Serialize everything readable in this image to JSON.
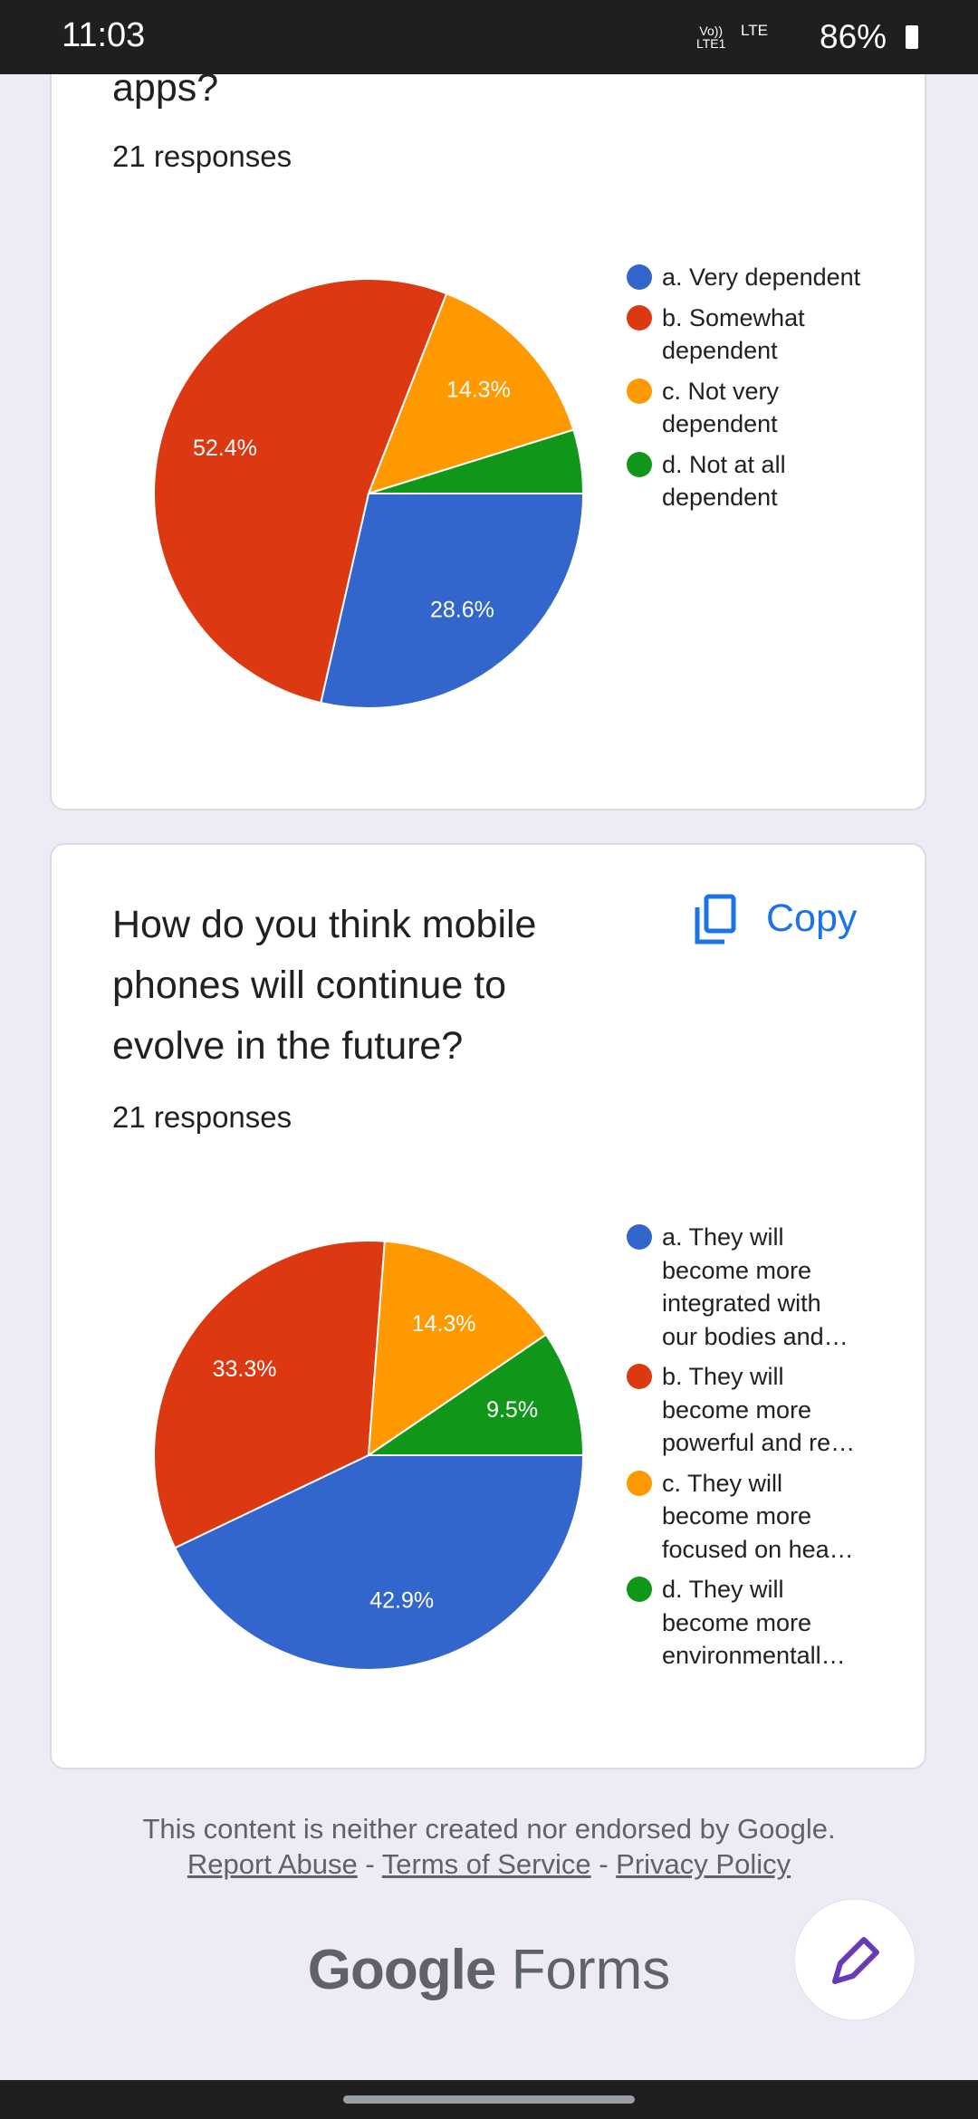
{
  "status_bar": {
    "time": "11:03",
    "volte": "Vo))",
    "volte_sub": "LTE1",
    "network": "LTE",
    "battery": "86%"
  },
  "cards": [
    {
      "title": "apps?",
      "responses": "21 responses"
    },
    {
      "title": "How do you think mobile phones will continue to evolve in the future?",
      "copy": "Copy",
      "responses": "21 responses"
    }
  ],
  "chart_data": [
    {
      "type": "pie",
      "categories": [
        "a. Very dependent",
        "b. Somewhat dependent",
        "c. Not very dependent",
        "d. Not at all dependent"
      ],
      "values": [
        28.6,
        52.4,
        14.3,
        4.8
      ],
      "value_labels": [
        "28.6%",
        "52.4%",
        "14.3%",
        null
      ],
      "colors": [
        "#3366cc",
        "#dc3912",
        "#ff9900",
        "#109618"
      ]
    },
    {
      "type": "pie",
      "categories": [
        "a. They will become more integrated with our bodies and…",
        "b. They will become more powerful and re…",
        "c. They will become more focused on hea…",
        "d. They will become more environmentall…"
      ],
      "values": [
        42.9,
        33.3,
        14.3,
        9.5
      ],
      "value_labels": [
        "42.9%",
        "33.3%",
        "14.3%",
        "9.5%"
      ],
      "colors": [
        "#3366cc",
        "#dc3912",
        "#ff9900",
        "#109618"
      ]
    }
  ],
  "footer": {
    "notice": "This content is neither created nor endorsed by Google.",
    "links": [
      "Report Abuse",
      "Terms of Service",
      "Privacy Policy"
    ],
    "separator": "-",
    "logo_google": "Google",
    "logo_forms": "Forms"
  }
}
